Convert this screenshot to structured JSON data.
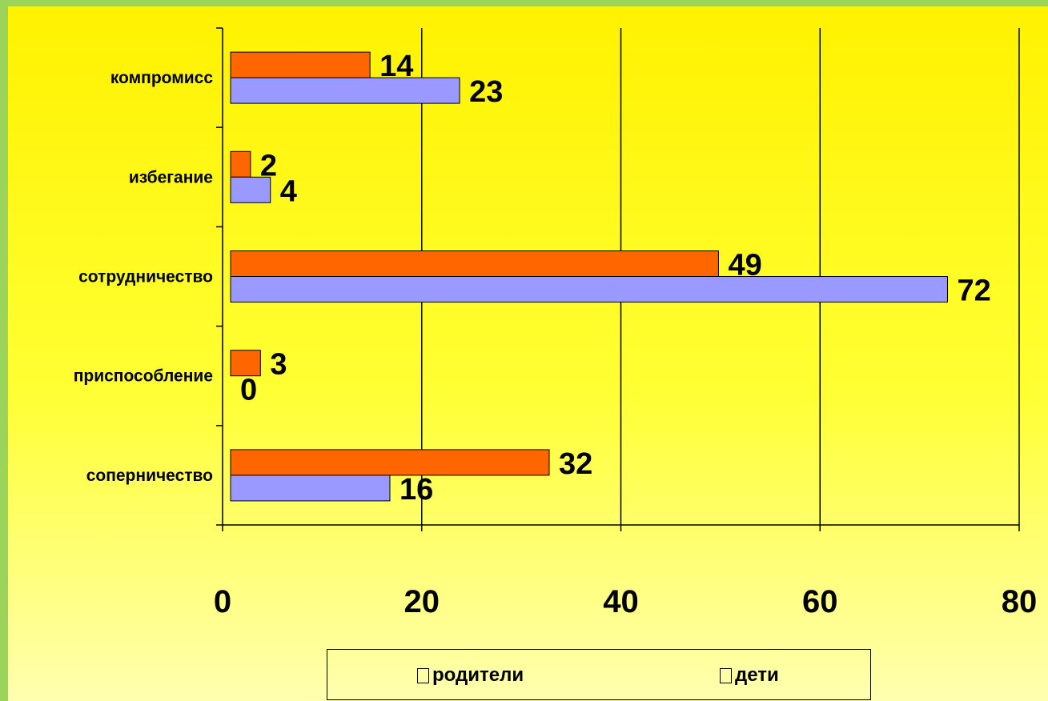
{
  "chart_data": {
    "type": "bar",
    "orientation": "horizontal",
    "categories": [
      "компромисс",
      "избегание",
      "сотрудничество",
      "приспособление",
      "соперничество"
    ],
    "series": [
      {
        "name": "родители",
        "color": "#9999ff",
        "values": [
          23,
          4,
          72,
          0,
          16
        ]
      },
      {
        "name": "дети",
        "color": "#ff6600",
        "values": [
          14,
          2,
          49,
          3,
          32
        ]
      }
    ],
    "xlim": [
      0,
      80
    ],
    "x_ticks": [
      "0",
      "20",
      "40",
      "60",
      "80"
    ],
    "grid": "vertical",
    "legend_position": "bottom"
  }
}
